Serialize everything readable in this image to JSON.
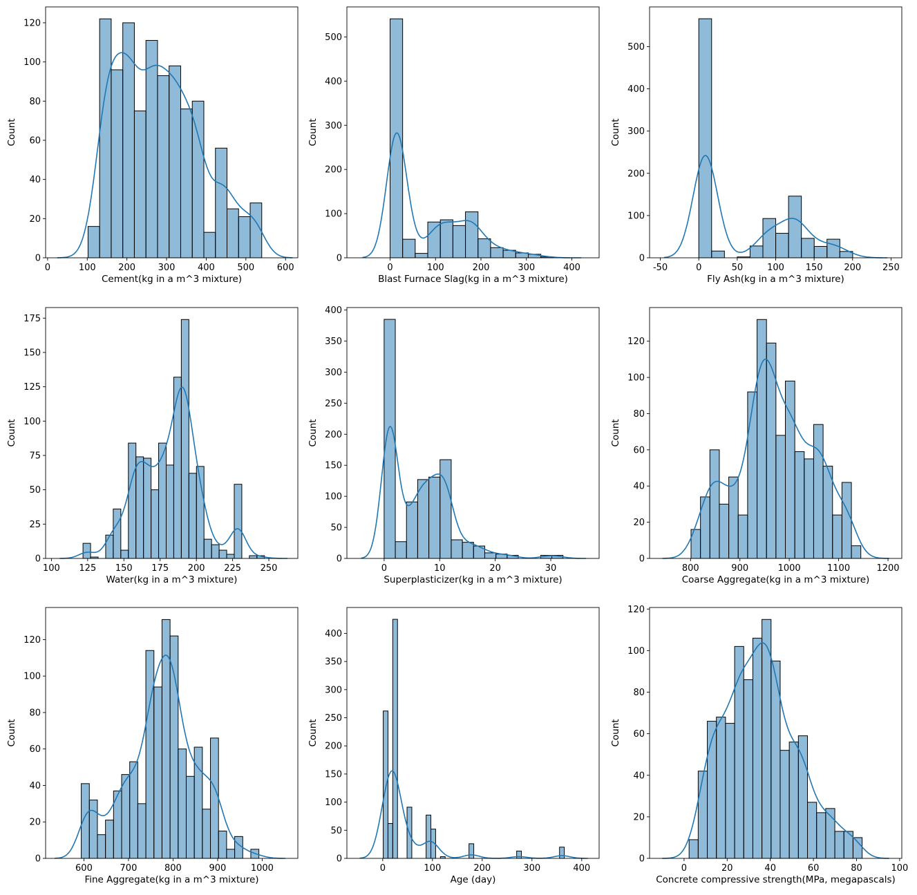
{
  "colors": {
    "bar_fill": "#1f77b4",
    "bar_fill_opacity": 0.5,
    "bar_edge": "#000000",
    "kde_line": "#1f77b4"
  },
  "chart_data": [
    {
      "type": "bar",
      "xlabel": "Cement(kg in a m^3 mixture)",
      "ylabel": "Count",
      "bin_range": [
        102,
        540
      ],
      "counts": [
        16,
        122,
        96,
        120,
        75,
        111,
        93,
        98,
        76,
        80,
        13,
        56,
        25,
        21,
        28
      ],
      "xlim": [
        -5,
        631
      ],
      "ylim": [
        0,
        128.1
      ],
      "xticks": [
        0,
        100,
        200,
        300,
        400,
        500,
        600
      ],
      "yticks": [
        0,
        20,
        40,
        60,
        80,
        100,
        120
      ],
      "kde": true,
      "grid": false
    },
    {
      "type": "bar",
      "xlabel": "Blast Furnace Slag(kg in a m^3 mixture)",
      "ylabel": "Count",
      "bin_range": [
        0,
        359.4
      ],
      "counts": [
        541,
        42,
        10,
        81,
        86,
        73,
        104,
        43,
        23,
        17,
        11,
        8,
        2
      ],
      "xlim": [
        -95,
        460
      ],
      "ylim": [
        0,
        568
      ],
      "xticks": [
        0,
        100,
        200,
        300,
        400
      ],
      "yticks": [
        0,
        100,
        200,
        300,
        400,
        500
      ],
      "kde": true,
      "grid": false
    },
    {
      "type": "bar",
      "xlabel": "Fly Ash(kg in a m^3 mixture)",
      "ylabel": "Count",
      "bin_range": [
        0,
        200.1
      ],
      "counts": [
        566,
        16,
        0,
        2,
        28,
        93,
        58,
        146,
        46,
        27,
        44,
        15
      ],
      "xlim": [
        -64,
        264
      ],
      "ylim": [
        0,
        594
      ],
      "xticks": [
        -50,
        0,
        50,
        100,
        150,
        200,
        250
      ],
      "yticks": [
        0,
        100,
        200,
        300,
        400,
        500
      ],
      "kde": true,
      "grid": false
    },
    {
      "type": "bar",
      "xlabel": "Water(kg in a m^3 mixture)",
      "ylabel": "Count",
      "bin_range": [
        121.8,
        247
      ],
      "counts": [
        11,
        1,
        0,
        17,
        36,
        6,
        84,
        74,
        73,
        50,
        84,
        68,
        132,
        174,
        62,
        67,
        14,
        10,
        6,
        3,
        54,
        0,
        2,
        2
      ],
      "xlim": [
        96,
        270
      ],
      "ylim": [
        0,
        182.7
      ],
      "xticks": [
        100,
        125,
        150,
        175,
        200,
        225,
        250
      ],
      "yticks": [
        0,
        25,
        50,
        75,
        100,
        125,
        150,
        175
      ],
      "kde": true,
      "grid": false
    },
    {
      "type": "bar",
      "xlabel": "Superplasticizer(kg in a m^3 mixture)",
      "ylabel": "Count",
      "bin_range": [
        0,
        32.2
      ],
      "counts": [
        385,
        27,
        91,
        127,
        131,
        159,
        30,
        26,
        20,
        9,
        7,
        5,
        0,
        0,
        5,
        5
      ],
      "xlim": [
        -6.7,
        38.7
      ],
      "ylim": [
        0,
        404
      ],
      "xticks": [
        0,
        10,
        20,
        30
      ],
      "yticks": [
        0,
        50,
        100,
        150,
        200,
        250,
        300,
        350,
        400
      ],
      "kde": true,
      "grid": false
    },
    {
      "type": "bar",
      "xlabel": "Coarse Aggregate(kg in a m^3 mixture)",
      "ylabel": "Count",
      "bin_range": [
        801,
        1145
      ],
      "counts": [
        16,
        34,
        60,
        30,
        45,
        24,
        92,
        132,
        119,
        68,
        98,
        59,
        55,
        74,
        51,
        24,
        42,
        7
      ],
      "xlim": [
        717,
        1228
      ],
      "ylim": [
        0,
        138.6
      ],
      "xticks": [
        800,
        900,
        1000,
        1100,
        1200
      ],
      "yticks": [
        0,
        20,
        40,
        60,
        80,
        100,
        120
      ],
      "kde": true,
      "grid": false
    },
    {
      "type": "bar",
      "xlabel": "Fine Aggregate(kg in a m^3 mixture)",
      "ylabel": "Count",
      "bin_range": [
        594,
        992.6
      ],
      "counts": [
        41,
        32,
        13,
        21,
        37,
        46,
        53,
        30,
        114,
        94,
        131,
        122,
        60,
        45,
        61,
        27,
        66,
        15,
        5,
        12,
        0,
        5
      ],
      "xlim": [
        514,
        1080
      ],
      "ylim": [
        0,
        137.6
      ],
      "xticks": [
        600,
        700,
        800,
        900,
        1000
      ],
      "yticks": [
        0,
        20,
        40,
        60,
        80,
        100,
        120
      ],
      "kde": true,
      "grid": false
    },
    {
      "type": "bar",
      "xlabel": "Age (day)",
      "ylabel": "Count",
      "bin_range": [
        1,
        365
      ],
      "counts": [
        262,
        62,
        425,
        0,
        0,
        91,
        0,
        0,
        0,
        77,
        52,
        0,
        3,
        0,
        0,
        0,
        0,
        0,
        26,
        0,
        0,
        0,
        0,
        0,
        0,
        0,
        0,
        0,
        13,
        0,
        0,
        0,
        0,
        0,
        0,
        0,
        0,
        20
      ],
      "xlim": [
        -72,
        435
      ],
      "ylim": [
        0,
        446
      ],
      "xticks": [
        0,
        100,
        200,
        300,
        400
      ],
      "yticks": [
        0,
        50,
        100,
        150,
        200,
        250,
        300,
        350,
        400
      ],
      "kde": true,
      "grid": false
    },
    {
      "type": "bar",
      "xlabel": "Concrete compressive strength(MPa, megapascals)",
      "ylabel": "Count",
      "bin_range": [
        2.33,
        82.6
      ],
      "counts": [
        9,
        42,
        66,
        68,
        65,
        102,
        86,
        106,
        115,
        95,
        52,
        56,
        59,
        27,
        22,
        24,
        13,
        13,
        10
      ],
      "xlim": [
        -16,
        101
      ],
      "ylim": [
        0,
        120.75
      ],
      "xticks": [
        0,
        20,
        40,
        60,
        80,
        100
      ],
      "yticks": [
        0,
        20,
        40,
        60,
        80,
        100,
        120
      ],
      "kde": true,
      "grid": false
    }
  ]
}
